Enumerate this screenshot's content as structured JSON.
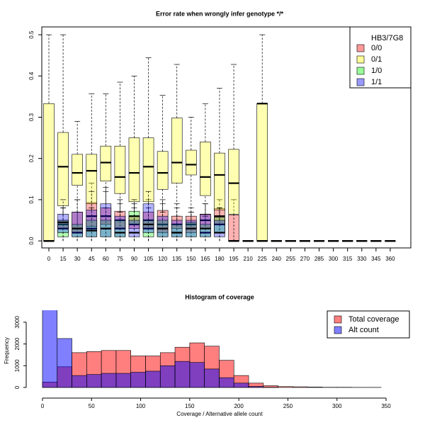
{
  "chart_data": [
    {
      "type": "box",
      "title": "Error rate when wrongly infer genotype */*",
      "categories": [
        "0",
        "15",
        "30",
        "45",
        "60",
        "75",
        "90",
        "105",
        "120",
        "135",
        "150",
        "165",
        "180",
        "195",
        "210",
        "225",
        "240",
        "255",
        "270",
        "285",
        "300",
        "315",
        "330",
        "345",
        "360"
      ],
      "ylim": [
        -0.017,
        0.519
      ],
      "yticks": [
        {
          "value": 0,
          "label": "0.0"
        },
        0.1,
        0.2,
        0.3,
        0.4,
        0.5
      ],
      "legend_title": "HB3/7G8",
      "legend": "top-right",
      "series": [
        {
          "name": "0/0",
          "color": "#ff0000",
          "values": [
            [
              0,
              0,
              0,
              0,
              0
            ],
            [
              0,
              0.03,
              0.04,
              0.05,
              0.08
            ],
            [
              0,
              0.02,
              0.03,
              0.07,
              0.1
            ],
            [
              0,
              0.035,
              0.06,
              0.093,
              0.14
            ],
            [
              0,
              0.04,
              0.06,
              0.08,
              0.12
            ],
            [
              0,
              0.03,
              0.05,
              0.072,
              0.1
            ],
            [
              0,
              0.03,
              0.04,
              0.06,
              0.09
            ],
            [
              0,
              0.03,
              0.05,
              0.07,
              0.1
            ],
            [
              0,
              0.02,
              0.04,
              0.074,
              0.1
            ],
            [
              0,
              0.03,
              0.04,
              0.06,
              0.09
            ],
            [
              0,
              0.02,
              0.04,
              0.06,
              0.08
            ],
            [
              0,
              0.03,
              0.05,
              0.065,
              0.09
            ],
            [
              0,
              0.04,
              0.06,
              0.078,
              0.1
            ],
            [
              0,
              0,
              0,
              0.063,
              0.1
            ],
            [
              0,
              0,
              0,
              0,
              0
            ],
            [
              0,
              0,
              0,
              0,
              0
            ],
            [
              0,
              0,
              0,
              0,
              0
            ],
            [
              0,
              0,
              0,
              0,
              0
            ],
            [
              0,
              0,
              0,
              0,
              0
            ],
            [
              0,
              0,
              0,
              0,
              0
            ],
            [
              0,
              0,
              0,
              0,
              0
            ],
            [
              0,
              0,
              0,
              0,
              0
            ],
            [
              0,
              0,
              0,
              0,
              0
            ],
            [
              0,
              0,
              0,
              0,
              0
            ],
            [
              0,
              0,
              0,
              0,
              0
            ]
          ]
        },
        {
          "name": "0/1",
          "color": "#ffff00",
          "values": [
            [
              0,
              0,
              0,
              0.333,
              0.5
            ],
            [
              0,
              0.085,
              0.18,
              0.263,
              0.5
            ],
            [
              0,
              0.135,
              0.165,
              0.21,
              0.29
            ],
            [
              0,
              0.09,
              0.17,
              0.21,
              0.357
            ],
            [
              0,
              0.145,
              0.19,
              0.23,
              0.357
            ],
            [
              0,
              0.115,
              0.155,
              0.23,
              0.385
            ],
            [
              0,
              0.095,
              0.165,
              0.25,
              0.4
            ],
            [
              0,
              0.095,
              0.18,
              0.25,
              0.444
            ],
            [
              0,
              0.125,
              0.165,
              0.217,
              0.353
            ],
            [
              0,
              0.14,
              0.19,
              0.298,
              0.428
            ],
            [
              0,
              0.16,
              0.185,
              0.22,
              0.3
            ],
            [
              0,
              0.11,
              0.155,
              0.24,
              0.333
            ],
            [
              0,
              0.075,
              0.16,
              0.213,
              0.37
            ],
            [
              0,
              0.065,
              0.14,
              0.222,
              0.428
            ],
            [
              0,
              0,
              0,
              0,
              0
            ],
            [
              0,
              0,
              0.333,
              0.333,
              0.5
            ],
            [
              0,
              0,
              0,
              0,
              0
            ],
            [
              0,
              0,
              0,
              0,
              0
            ],
            [
              0,
              0,
              0,
              0,
              0
            ],
            [
              0,
              0,
              0,
              0,
              0
            ],
            [
              0,
              0,
              0,
              0,
              0
            ],
            [
              0,
              0,
              0,
              0,
              0
            ],
            [
              0,
              0,
              0,
              0,
              0
            ],
            [
              0,
              0,
              0,
              0,
              0
            ],
            [
              0,
              0,
              0,
              0,
              0
            ]
          ]
        },
        {
          "name": "1/0",
          "color": "#00ff00",
          "values": [
            [
              0,
              0,
              0,
              0,
              0
            ],
            [
              0,
              0.01,
              0.03,
              0.05,
              0.08
            ],
            [
              0,
              0.01,
              0.02,
              0.04,
              0.07
            ],
            [
              0,
              0.01,
              0.03,
              0.05,
              0.08
            ],
            [
              0,
              0.01,
              0.03,
              0.05,
              0.08
            ],
            [
              0,
              0.01,
              0.03,
              0.05,
              0.07
            ],
            [
              0,
              0.04,
              0.06,
              0.072,
              0.1
            ],
            [
              0,
              0.01,
              0.03,
              0.05,
              0.08
            ],
            [
              0,
              0.01,
              0.03,
              0.05,
              0.07
            ],
            [
              0,
              0.01,
              0.02,
              0.04,
              0.06
            ],
            [
              0,
              0.01,
              0.03,
              0.045,
              0.07
            ],
            [
              0,
              0.01,
              0.02,
              0.04,
              0.06
            ],
            [
              0,
              0.02,
              0.04,
              0.057,
              0.08
            ],
            [
              0,
              0,
              0,
              0,
              0
            ],
            [
              0,
              0,
              0,
              0,
              0
            ],
            [
              0,
              0,
              0,
              0,
              0
            ],
            [
              0,
              0,
              0,
              0,
              0
            ],
            [
              0,
              0,
              0,
              0,
              0
            ],
            [
              0,
              0,
              0,
              0,
              0
            ],
            [
              0,
              0,
              0,
              0,
              0
            ],
            [
              0,
              0,
              0,
              0,
              0
            ],
            [
              0,
              0,
              0,
              0,
              0
            ],
            [
              0,
              0,
              0,
              0,
              0
            ],
            [
              0,
              0,
              0,
              0,
              0
            ],
            [
              0,
              0,
              0,
              0,
              0
            ]
          ]
        },
        {
          "name": "1/1",
          "color": "#0000ff",
          "values": [
            [
              0,
              0,
              0,
              0,
              0
            ],
            [
              0,
              0.02,
              0.045,
              0.065,
              0.1
            ],
            [
              0,
              0.01,
              0.03,
              0.07,
              0.1
            ],
            [
              0,
              0.01,
              0.025,
              0.075,
              0.12
            ],
            [
              0,
              0.01,
              0.03,
              0.09,
              0.13
            ],
            [
              0,
              0.01,
              0.02,
              0.06,
              0.09
            ],
            [
              0,
              0.01,
              0.02,
              0.05,
              0.08
            ],
            [
              0,
              0.02,
              0.04,
              0.09,
              0.12
            ],
            [
              0,
              0.01,
              0.03,
              0.06,
              0.09
            ],
            [
              0,
              0.01,
              0.02,
              0.05,
              0.08
            ],
            [
              0,
              0.01,
              0.03,
              0.05,
              0.07
            ],
            [
              0,
              0.01,
              0.03,
              0.064,
              0.09
            ],
            [
              0,
              0.01,
              0.02,
              0.05,
              0.08
            ],
            [
              0,
              0,
              0,
              0,
              0
            ],
            [
              0,
              0,
              0,
              0,
              0
            ],
            [
              0,
              0,
              0,
              0,
              0
            ],
            [
              0,
              0,
              0,
              0,
              0
            ],
            [
              0,
              0,
              0,
              0,
              0
            ],
            [
              0,
              0,
              0,
              0,
              0
            ],
            [
              0,
              0,
              0,
              0,
              0
            ],
            [
              0,
              0,
              0,
              0,
              0
            ],
            [
              0,
              0,
              0,
              0,
              0
            ],
            [
              0,
              0,
              0,
              0,
              0
            ],
            [
              0,
              0,
              0,
              0,
              0
            ],
            [
              0,
              0,
              0,
              0,
              0
            ]
          ]
        }
      ]
    },
    {
      "type": "histogram",
      "title": "Histogram of coverage",
      "x_label": "Coverage / Alternative allele count",
      "y_label": "Frequency",
      "bins": [
        0,
        15,
        30,
        45,
        60,
        75,
        90,
        105,
        120,
        135,
        150,
        165,
        180,
        195,
        210,
        225,
        240,
        255,
        270,
        285,
        300,
        315,
        330,
        345,
        360
      ],
      "xlim": [
        -14.4,
        360.8
      ],
      "ylim": [
        0,
        3550
      ],
      "xticks": [
        0,
        50,
        100,
        150,
        200,
        250,
        300,
        350
      ],
      "yticks": [
        0,
        1000,
        2000,
        3000
      ],
      "legend": "top-right",
      "series": [
        {
          "name": "Total coverage",
          "color": "#ff0000",
          "values": [
            250,
            950,
            1600,
            1650,
            1700,
            1700,
            1450,
            1450,
            1600,
            1850,
            2050,
            1900,
            1250,
            550,
            200,
            80,
            40,
            30,
            20,
            10,
            10,
            5,
            5,
            0
          ]
        },
        {
          "name": "Alt count",
          "color": "#0000ff",
          "values": [
            3800,
            2250,
            550,
            600,
            650,
            650,
            700,
            750,
            1000,
            1200,
            1150,
            850,
            450,
            200,
            50,
            10,
            0,
            0,
            0,
            0,
            0,
            0,
            0,
            0
          ]
        }
      ]
    }
  ]
}
